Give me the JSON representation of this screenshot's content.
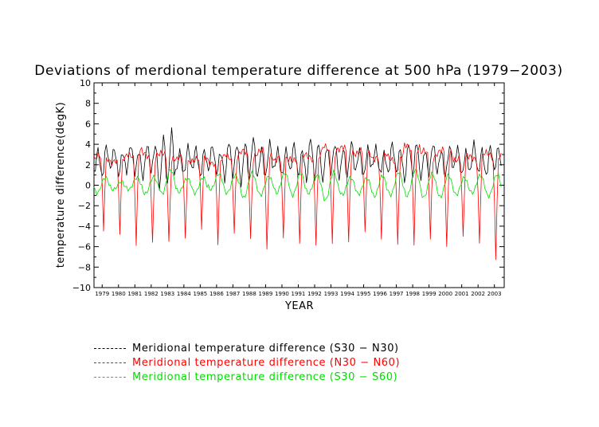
{
  "chart_data": {
    "type": "line",
    "title": "Deviations of merdional temperature difference at 500 hPa (1979−2003)",
    "xlabel": "YEAR",
    "ylabel": "temperature difference(degK)",
    "ylim": [
      -10,
      10
    ],
    "xlim": [
      1978.5,
      2003.6
    ],
    "yticks": [
      -10,
      -8,
      -6,
      -4,
      -2,
      0,
      2,
      4,
      6,
      8,
      10
    ],
    "xticks": [
      "1979",
      "1980",
      "1981",
      "1982",
      "1983",
      "1984",
      "1985",
      "1986",
      "1987",
      "1988",
      "1989",
      "1990",
      "1991",
      "1992",
      "1993",
      "1994",
      "1995",
      "1996",
      "1997",
      "1998",
      "1999",
      "2000",
      "2001",
      "2002",
      "2003"
    ],
    "grid": false,
    "legend_position": "bottom-left",
    "time_resolution": "monthly",
    "series": [
      {
        "name": "Meridional temperature difference (S30 − N30)",
        "color": "#000000",
        "mean": 2.4,
        "amplitude": 1.5,
        "phase_month": 3,
        "annual_peaks": [
          3.9,
          3.6,
          3.8,
          4.0,
          5.3,
          3.7,
          3.8,
          3.7,
          4.3,
          4.6,
          4.1,
          3.7,
          3.9,
          4.6,
          4.0,
          4.1,
          3.8,
          3.6,
          3.9,
          4.3,
          3.9,
          3.8,
          3.7,
          3.9,
          3.8
        ]
      },
      {
        "name": "Meridional temperature difference (N30 − N60)",
        "color": "#ff0000",
        "shape": "annual cycle with sharp minima",
        "annual_peaks": [
          3.6,
          3.3,
          4.2,
          3.9,
          3.8,
          3.4,
          3.5,
          3.2,
          3.8,
          4.1,
          4.2,
          3.5,
          3.6,
          3.8,
          4.7,
          4.6,
          4.3,
          3.8,
          3.6,
          4.9,
          4.1,
          4.4,
          3.6,
          3.8,
          3.9
        ],
        "annual_minima": [
          -4.5,
          -4.8,
          -5.8,
          -5.5,
          -5.6,
          -5.4,
          -4.4,
          -5.6,
          -4.4,
          -5.2,
          -6.6,
          -5.5,
          -5.6,
          -5.4,
          -5.4,
          -5.8,
          -5.1,
          -5.5,
          -5.4,
          -5.3,
          -5.2,
          -6.5,
          -5.5,
          -5.6,
          -6.7
        ]
      },
      {
        "name": "Meridional temperature difference (S30 − S60)",
        "color": "#00dd00",
        "mean": 0.1,
        "amplitude": 0.7,
        "phase_month": 8,
        "annual_peaks": [
          1.1,
          0.7,
          0.9,
          0.8,
          1.6,
          0.9,
          1.2,
          1.4,
          1.0,
          1.3,
          1.1,
          1.7,
          1.6,
          1.1,
          1.4,
          0.9,
          1.1,
          1.4,
          1.5,
          1.6,
          1.3,
          1.4,
          1.2,
          1.2,
          1.1
        ],
        "annual_minima": [
          -1.0,
          -0.8,
          -0.7,
          -0.9,
          -0.9,
          -0.8,
          -1.2,
          -0.8,
          -0.9,
          -1.3,
          -1.1,
          -1.2,
          -1.5,
          -1.0,
          -1.6,
          -1.0,
          -1.2,
          -1.6,
          -1.3,
          -1.2,
          -1.3,
          -1.5,
          -1.4,
          -1.1,
          -1.2
        ]
      }
    ]
  },
  "legend": {
    "items": [
      {
        "label": "Meridional temperature difference (S30 − N30)",
        "color": "#000000"
      },
      {
        "label": "Meridional temperature difference (N30 − N60)",
        "color": "#ff0000"
      },
      {
        "label": "Meridional temperature difference (S30 − S60)",
        "color": "#00dd00"
      }
    ]
  }
}
